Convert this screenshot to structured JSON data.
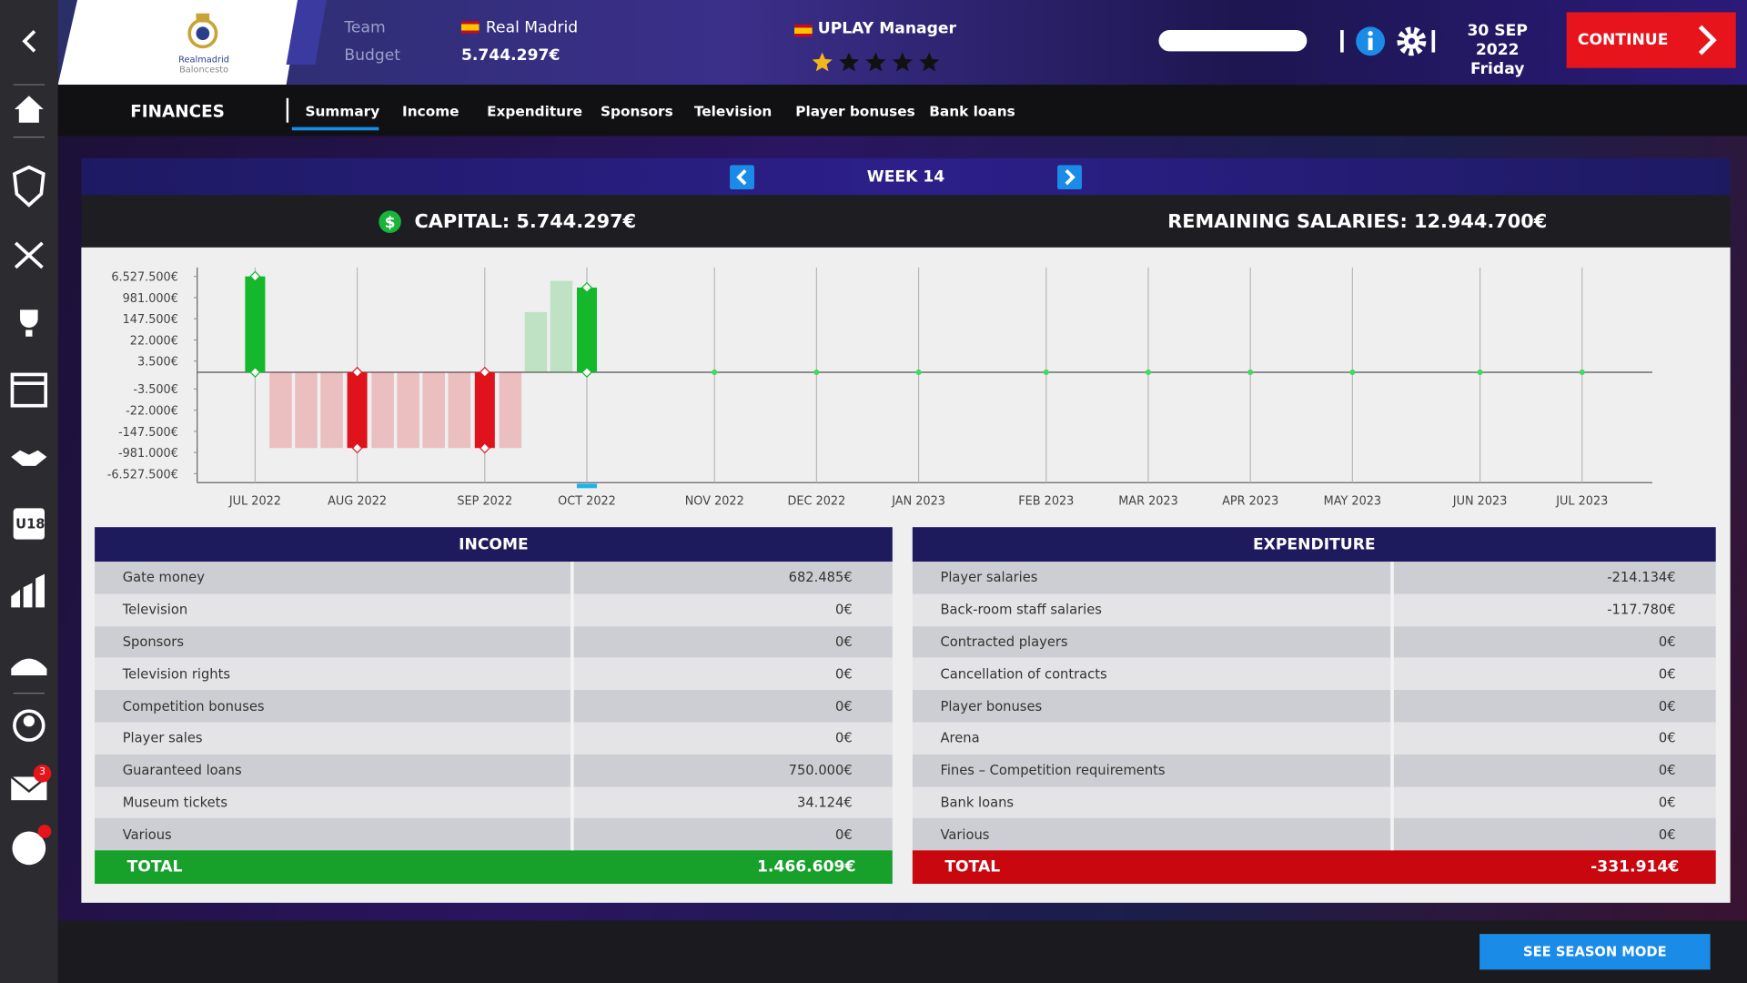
{
  "header": {
    "logo_text": [
      "Realmadrid",
      "Baloncesto"
    ],
    "team_label": "Team",
    "team": "Real Madrid",
    "budget_label": "Budget",
    "budget": "5.744.297€",
    "manager": "UPLAY Manager",
    "date": "30 SEP 2022",
    "weekday": "Friday",
    "continue": "CONTINUE"
  },
  "sidebar": {
    "u18": "U18",
    "mail_badge": "3"
  },
  "nav": {
    "section": "FINANCES",
    "tabs": [
      "Summary",
      "Income",
      "Expenditure",
      "Sponsors",
      "Television",
      "Player bonuses",
      "Bank loans"
    ]
  },
  "week": "WEEK 14",
  "capital": "CAPITAL: 5.744.297€",
  "remaining": "REMAINING SALARIES: 12.944.700€",
  "chart_data": {
    "type": "bar",
    "yscale": "symlog",
    "categories": [
      "JUL 2022",
      null,
      null,
      null,
      "AUG 2022",
      null,
      null,
      null,
      null,
      "SEP 2022",
      null,
      null,
      null,
      "OCT 2022",
      null,
      null,
      null,
      null,
      "NOV 2022",
      null,
      null,
      null,
      "DEC 2022",
      null,
      null,
      null,
      "JAN 2023",
      null,
      null,
      null,
      null,
      "FEB 2023",
      null,
      null,
      null,
      "MAR 2023",
      null,
      null,
      null,
      "APR 2023",
      null,
      null,
      null,
      "MAY 2023",
      null,
      null,
      null,
      null,
      "JUN 2023",
      null,
      null,
      null,
      "JUL 2023"
    ],
    "values": [
      6527500,
      -658000,
      -658000,
      -658000,
      -658000,
      -658000,
      -658000,
      -658000,
      -658000,
      -658000,
      -658000,
      268000,
      4380000,
      2400000,
      null,
      null,
      null,
      null,
      null,
      null,
      null,
      null,
      null,
      null,
      null,
      null,
      null,
      null,
      null,
      null,
      null,
      null,
      null,
      null,
      null,
      null,
      null,
      null,
      null,
      null,
      null,
      null,
      null,
      null,
      null,
      null,
      null,
      null,
      null,
      null,
      null,
      null,
      null
    ],
    "colors": {
      "positive": "#14b82a",
      "negative": "#e0131c"
    },
    "yticks": [
      {
        "value": 6527500,
        "label": "6.527.500€"
      },
      {
        "value": 981000,
        "label": "981.000€"
      },
      {
        "value": 147500,
        "label": "147.500€"
      },
      {
        "value": 22000,
        "label": "22.000€"
      },
      {
        "value": 3500,
        "label": "3.500€"
      },
      {
        "value": -3500,
        "label": "-3.500€"
      },
      {
        "value": -22000,
        "label": "-22.000€"
      },
      {
        "value": -147500,
        "label": "-147.500€"
      },
      {
        "value": -981000,
        "label": "-981.000€"
      },
      {
        "value": -6527500,
        "label": "-6.527.500€"
      }
    ]
  },
  "income": {
    "title": "INCOME",
    "rows": [
      [
        "Gate money",
        "682.485€"
      ],
      [
        "Television",
        "0€"
      ],
      [
        "Sponsors",
        "0€"
      ],
      [
        "Television rights",
        "0€"
      ],
      [
        "Competition bonuses",
        "0€"
      ],
      [
        "Player sales",
        "0€"
      ],
      [
        "Guaranteed loans",
        "750.000€"
      ],
      [
        "Museum tickets",
        "34.124€"
      ],
      [
        "Various",
        "0€"
      ]
    ],
    "total": [
      "TOTAL",
      "1.466.609€"
    ]
  },
  "expenditure": {
    "title": "EXPENDITURE",
    "rows": [
      [
        "Player salaries",
        "-214.134€"
      ],
      [
        "Back-room staff salaries",
        "-117.780€"
      ],
      [
        "Contracted players",
        "0€"
      ],
      [
        "Cancellation of contracts",
        "0€"
      ],
      [
        "Player bonuses",
        "0€"
      ],
      [
        "Arena",
        "0€"
      ],
      [
        "Fines – Competition requirements",
        "0€"
      ],
      [
        "Bank loans",
        "0€"
      ],
      [
        "Various",
        "0€"
      ]
    ],
    "total": [
      "TOTAL",
      "-331.914€"
    ]
  },
  "season_button": "SEE SEASON MODE"
}
